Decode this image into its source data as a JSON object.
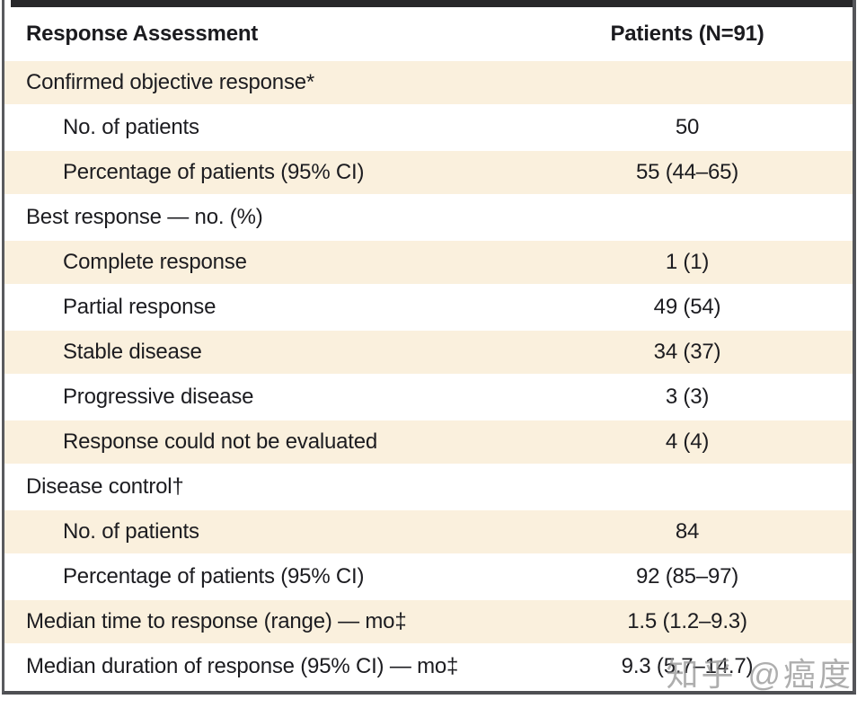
{
  "table": {
    "header": {
      "col_label": "Response Assessment",
      "col_value": "Patients (N=91)"
    },
    "rows": [
      {
        "label": "Confirmed objective response*",
        "value": ""
      },
      {
        "label": "No. of patients",
        "value": "50"
      },
      {
        "label": "Percentage of patients (95% CI)",
        "value": "55 (44–65)"
      },
      {
        "label": "Best response — no. (%)",
        "value": ""
      },
      {
        "label": "Complete response",
        "value": "1 (1)"
      },
      {
        "label": "Partial response",
        "value": "49 (54)"
      },
      {
        "label": "Stable disease",
        "value": "34 (37)"
      },
      {
        "label": "Progressive disease",
        "value": "3 (3)"
      },
      {
        "label": "Response could not be evaluated",
        "value": "4 (4)"
      },
      {
        "label": "Disease control†",
        "value": ""
      },
      {
        "label": "No. of patients",
        "value": "84"
      },
      {
        "label": "Percentage of patients (95% CI)",
        "value": "92 (85–97)"
      },
      {
        "label": "Median time to response (range) — mo‡",
        "value": "1.5 (1.2–9.3)"
      },
      {
        "label": "Median duration of response (95% CI) — mo‡",
        "value": "9.3 (5.7–14.7)"
      }
    ]
  },
  "watermark": "知乎 @癌度",
  "colors": {
    "stripe": "#faf0dd",
    "text": "#1c1c20",
    "frame_border": "#55565a",
    "top_rule": "#28282a",
    "watermark": "#8f8f8f"
  }
}
